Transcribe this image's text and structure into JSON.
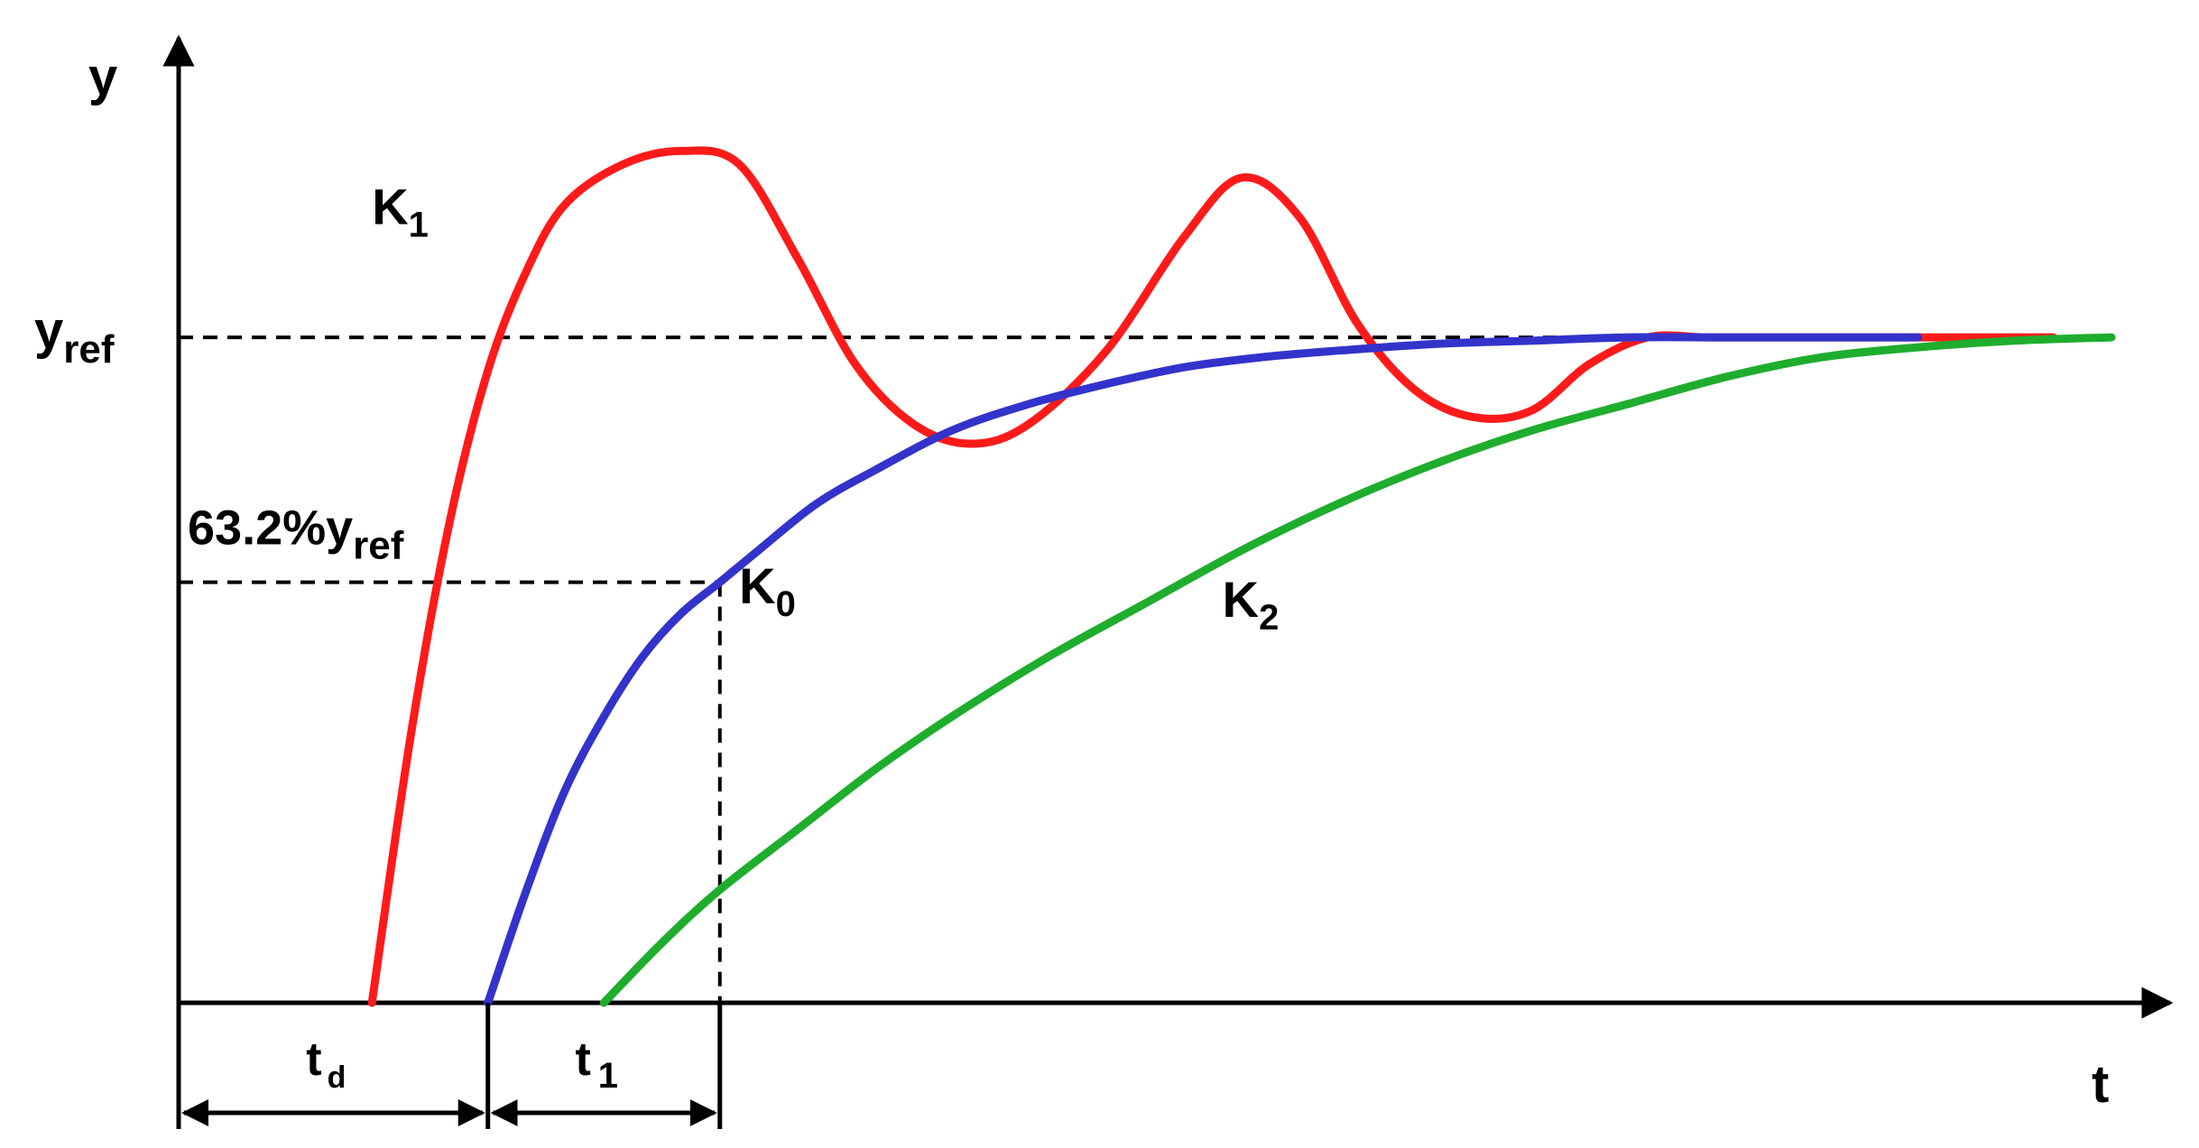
{
  "chart_data": {
    "type": "line",
    "title": "",
    "xlabel": "t",
    "ylabel": "y",
    "xlim": [
      0,
      10
    ],
    "ylim": [
      0,
      1.45
    ],
    "grid": false,
    "legend": "none",
    "reference": {
      "label_main": "y",
      "label_sub": "ref",
      "value": 1.0
    },
    "fraction": {
      "label_prefix": "63.2%y",
      "label_sub": "ref",
      "value": 0.632,
      "t_at": 2.8
    },
    "intervals": [
      {
        "label_main": "t",
        "label_sub": "d",
        "from": 0,
        "to": 1.6
      },
      {
        "label_main": "t",
        "label_sub": "1",
        "from": 1.6,
        "to": 2.8
      }
    ],
    "series": [
      {
        "name": "K1",
        "label_main": "K",
        "label_sub": "1",
        "color": "#ff1a1a",
        "x": [
          1.0,
          1.2,
          1.4,
          1.6,
          1.8,
          2.0,
          2.3,
          2.6,
          2.9,
          3.2,
          3.5,
          3.8,
          4.1,
          4.4,
          4.8,
          5.2,
          5.5,
          5.8,
          6.1,
          6.4,
          6.7,
          7.0,
          7.3,
          7.6,
          7.9,
          8.2,
          8.5,
          8.8,
          9.1,
          9.4,
          9.7
        ],
        "y": [
          0.0,
          0.4,
          0.72,
          0.95,
          1.1,
          1.2,
          1.26,
          1.28,
          1.26,
          1.12,
          0.96,
          0.87,
          0.84,
          0.87,
          0.98,
          1.15,
          1.24,
          1.18,
          1.02,
          0.92,
          0.88,
          0.89,
          0.96,
          1.0,
          1.0,
          1.0,
          1.0,
          1.0,
          1.0,
          1.0,
          1.0
        ]
      },
      {
        "name": "K0",
        "label_main": "K",
        "label_sub": "0",
        "color": "#3333cc",
        "x": [
          1.6,
          1.8,
          2.0,
          2.2,
          2.4,
          2.6,
          2.8,
          3.0,
          3.3,
          3.6,
          4.0,
          4.4,
          4.8,
          5.2,
          5.6,
          6.0,
          6.5,
          7.0,
          7.5,
          8.0,
          8.5,
          9.0
        ],
        "y": [
          0.0,
          0.17,
          0.32,
          0.43,
          0.52,
          0.585,
          0.632,
          0.68,
          0.75,
          0.8,
          0.86,
          0.9,
          0.93,
          0.955,
          0.97,
          0.98,
          0.99,
          0.995,
          1.0,
          1.0,
          1.0,
          1.0
        ]
      },
      {
        "name": "K2",
        "label_main": "K",
        "label_sub": "2",
        "color": "#1fad2e",
        "x": [
          2.2,
          2.5,
          2.8,
          3.2,
          3.6,
          4.0,
          4.5,
          5.0,
          5.5,
          6.0,
          6.5,
          7.0,
          7.5,
          8.0,
          8.5,
          9.0,
          9.5,
          10.0
        ],
        "y": [
          0.0,
          0.09,
          0.17,
          0.26,
          0.35,
          0.43,
          0.52,
          0.6,
          0.68,
          0.75,
          0.81,
          0.86,
          0.9,
          0.94,
          0.97,
          0.985,
          0.995,
          1.0
        ]
      }
    ]
  }
}
